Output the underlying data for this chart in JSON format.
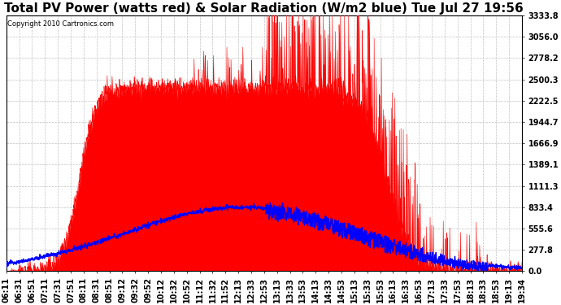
{
  "title": "Total PV Power (watts red) & Solar Radiation (W/m2 blue) Tue Jul 27 19:56",
  "copyright": "Copyright 2010 Cartronics.com",
  "y_ticks": [
    0.0,
    277.8,
    555.6,
    833.4,
    1111.3,
    1389.1,
    1666.9,
    1944.7,
    2222.5,
    2500.3,
    2778.2,
    3056.0,
    3333.8
  ],
  "y_max": 3333.8,
  "x_labels": [
    "06:11",
    "06:31",
    "06:51",
    "07:11",
    "07:31",
    "07:51",
    "08:11",
    "08:31",
    "08:51",
    "09:12",
    "09:32",
    "09:52",
    "10:12",
    "10:32",
    "10:52",
    "11:12",
    "11:32",
    "11:52",
    "12:13",
    "12:33",
    "12:53",
    "13:13",
    "13:33",
    "13:53",
    "14:13",
    "14:33",
    "14:53",
    "15:13",
    "15:33",
    "15:53",
    "16:13",
    "16:33",
    "16:53",
    "17:13",
    "17:33",
    "17:53",
    "18:13",
    "18:33",
    "18:53",
    "19:13",
    "19:34"
  ],
  "background_color": "#ffffff",
  "plot_bg_color": "#ffffff",
  "red_color": "#ff0000",
  "blue_color": "#0000ff",
  "grid_color": "#bbbbbb",
  "title_fontsize": 11,
  "tick_fontsize": 7,
  "copyright_fontsize": 6
}
